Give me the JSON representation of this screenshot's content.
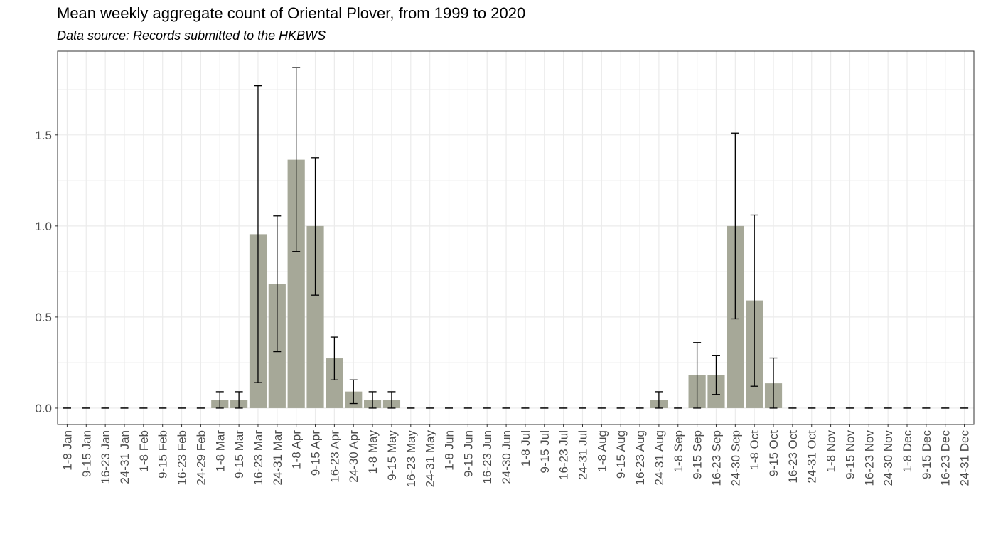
{
  "chart_data": {
    "type": "bar",
    "title": "Mean weekly aggregate count of Oriental Plover, from 1999 to 2020",
    "subtitle": "Data source: Records submitted to the HKBWS",
    "xlabel": "",
    "ylabel": "",
    "ylim": [
      -0.09,
      1.96
    ],
    "yticks": [
      0.0,
      0.5,
      1.0,
      1.5
    ],
    "ytick_labels": [
      "0.0",
      "0.5",
      "1.0",
      "1.5"
    ],
    "grid": true,
    "legend": "none",
    "bar_color": "#a6a898",
    "categories": [
      "1-8 Jan",
      "9-15 Jan",
      "16-23 Jan",
      "24-31 Jan",
      "1-8 Feb",
      "9-15 Feb",
      "16-23 Feb",
      "24-29 Feb",
      "1-8 Mar",
      "9-15 Mar",
      "16-23 Mar",
      "24-31 Mar",
      "1-8 Apr",
      "9-15 Apr",
      "16-23 Apr",
      "24-30 Apr",
      "1-8 May",
      "9-15 May",
      "16-23 May",
      "24-31 May",
      "1-8 Jun",
      "9-15 Jun",
      "16-23 Jun",
      "24-30 Jun",
      "1-8 Jul",
      "9-15 Jul",
      "16-23 Jul",
      "24-31 Jul",
      "1-8 Aug",
      "9-15 Aug",
      "16-23 Aug",
      "24-31 Aug",
      "1-8 Sep",
      "9-15 Sep",
      "16-23 Sep",
      "24-30 Sep",
      "1-8 Oct",
      "9-15 Oct",
      "16-23 Oct",
      "24-31 Oct",
      "1-8 Nov",
      "9-15 Nov",
      "16-23 Nov",
      "24-30 Nov",
      "1-8 Dec",
      "9-15 Dec",
      "16-23 Dec",
      "24-31 Dec"
    ],
    "values": [
      0,
      0,
      0,
      0,
      0,
      0,
      0,
      0,
      0.045,
      0.045,
      0.955,
      0.682,
      1.364,
      1.0,
      0.273,
      0.091,
      0.045,
      0.045,
      0,
      0,
      0,
      0,
      0,
      0,
      0,
      0,
      0,
      0,
      0,
      0,
      0,
      0.045,
      0,
      0.182,
      0.182,
      1.0,
      0.591,
      0.136,
      0,
      0,
      0,
      0,
      0,
      0,
      0,
      0,
      0,
      0
    ],
    "error_low": [
      0,
      0,
      0,
      0,
      0,
      0,
      0,
      0,
      0,
      0,
      0.14,
      0.31,
      0.86,
      0.62,
      0.155,
      0.025,
      0,
      0,
      0,
      0,
      0,
      0,
      0,
      0,
      0,
      0,
      0,
      0,
      0,
      0,
      0,
      0,
      0,
      0,
      0.075,
      0.49,
      0.12,
      0,
      0,
      0,
      0,
      0,
      0,
      0,
      0,
      0,
      0,
      0
    ],
    "error_high": [
      0,
      0,
      0,
      0,
      0,
      0,
      0,
      0,
      0.09,
      0.09,
      1.77,
      1.055,
      1.87,
      1.375,
      0.39,
      0.155,
      0.09,
      0.09,
      0,
      0,
      0,
      0,
      0,
      0,
      0,
      0,
      0,
      0,
      0,
      0,
      0,
      0.09,
      0,
      0.36,
      0.29,
      1.51,
      1.06,
      0.275,
      0,
      0,
      0,
      0,
      0,
      0,
      0,
      0,
      0,
      0
    ]
  }
}
